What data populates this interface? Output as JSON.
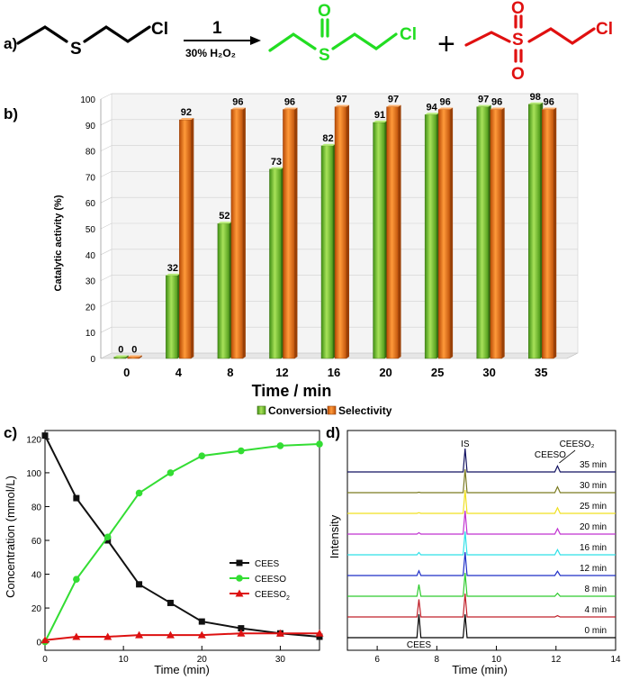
{
  "panels": {
    "a": "a)",
    "b": "b)",
    "c": "c)",
    "d": "d)"
  },
  "scheme": {
    "s_atom": "S",
    "cl_atom": "Cl",
    "o_atom": "O",
    "catalyst": "1",
    "reagent": "30% H₂O₂",
    "plus": "+",
    "colors": {
      "reactant": "#000000",
      "sulfoxide": "#22dd22",
      "sulfone": "#e01010"
    }
  },
  "chart_data": [
    {
      "type": "bar",
      "panel": "b",
      "xlabel": "Time / min",
      "ylabel": "Catalytic  activity  (%)",
      "ylim": [
        0,
        100
      ],
      "yticks": [
        0,
        10,
        20,
        30,
        40,
        50,
        60,
        70,
        80,
        90,
        100
      ],
      "categories": [
        "0",
        "4",
        "8",
        "12",
        "16",
        "20",
        "25",
        "30",
        "35"
      ],
      "series": [
        {
          "name": "Conversion",
          "color": "#6cbf2a",
          "values": [
            0,
            32,
            52,
            73,
            82,
            91,
            94,
            97,
            98
          ],
          "labels": [
            "0",
            "32",
            "52",
            "73",
            "82",
            "91",
            "94",
            "97",
            "98"
          ]
        },
        {
          "name": "Selectivity",
          "color": "#e8690e",
          "values": [
            0,
            92,
            96,
            96,
            97,
            97,
            96,
            96,
            96
          ],
          "labels": [
            "0",
            "92",
            "96",
            "96",
            "97",
            "97",
            "96",
            "96",
            "96"
          ]
        }
      ],
      "legend": "bottom"
    },
    {
      "type": "line",
      "panel": "c",
      "xlabel": "Time (min)",
      "ylabel": "Concentration (mmol/L)",
      "xlim": [
        0,
        35
      ],
      "ylim": [
        -5,
        125
      ],
      "xticks": [
        0,
        10,
        20,
        30
      ],
      "yticks": [
        0,
        20,
        40,
        60,
        80,
        100,
        120
      ],
      "series": [
        {
          "name": "CEES",
          "color": "#111111",
          "marker": "square",
          "x": [
            0,
            4,
            8,
            12,
            16,
            20,
            25,
            30,
            35
          ],
          "y": [
            122,
            85,
            60,
            34,
            23,
            12,
            8,
            5,
            3
          ]
        },
        {
          "name": "CEESO",
          "color": "#33dd33",
          "marker": "circle",
          "x": [
            0,
            4,
            8,
            12,
            16,
            20,
            25,
            30,
            35
          ],
          "y": [
            0,
            37,
            62,
            88,
            100,
            110,
            113,
            116,
            117
          ]
        },
        {
          "name": "CEESO2",
          "color": "#dd1111",
          "marker": "triangle",
          "x": [
            0,
            4,
            8,
            12,
            16,
            20,
            25,
            30,
            35
          ],
          "y": [
            1,
            3,
            3,
            4,
            4,
            4,
            5,
            5,
            5
          ]
        }
      ],
      "legend": "right"
    },
    {
      "type": "line",
      "panel": "d",
      "xlabel": "Time (min)",
      "ylabel": "Intensity",
      "xlim": [
        5,
        14
      ],
      "xticks": [
        6,
        8,
        10,
        12,
        14
      ],
      "peak_labels": {
        "cees": "CEES",
        "is": "IS",
        "ceeso": "CEESO",
        "ceeso2": "CEESO₂"
      },
      "peaks_rt": {
        "cees": 7.4,
        "is": 8.95,
        "ceeso": 12.05,
        "ceeso2": 12.4
      },
      "traces": [
        {
          "label": "0 min",
          "color": "#000000",
          "cees": 1.0,
          "is": 1.0,
          "ceeso": 0.0
        },
        {
          "label": "4 min",
          "color": "#c0202a",
          "cees": 0.75,
          "is": 1.0,
          "ceeso": 0.12
        },
        {
          "label": "8 min",
          "color": "#2fcb2f",
          "cees": 0.5,
          "is": 1.0,
          "ceeso": 0.28
        },
        {
          "label": "12 min",
          "color": "#1f2fc8",
          "cees": 0.2,
          "is": 1.0,
          "ceeso": 0.4
        },
        {
          "label": "16 min",
          "color": "#2ee0e8",
          "cees": 0.1,
          "is": 1.0,
          "ceeso": 0.48
        },
        {
          "label": "20 min",
          "color": "#c030d0",
          "cees": 0.06,
          "is": 1.0,
          "ceeso": 0.5
        },
        {
          "label": "25 min",
          "color": "#f0e020",
          "cees": 0.03,
          "is": 1.0,
          "ceeso": 0.52
        },
        {
          "label": "30 min",
          "color": "#7a7a20",
          "cees": 0.02,
          "is": 1.0,
          "ceeso": 0.54
        },
        {
          "label": "35 min",
          "color": "#101060",
          "cees": 0.0,
          "is": 1.0,
          "ceeso": 0.55
        }
      ]
    }
  ]
}
